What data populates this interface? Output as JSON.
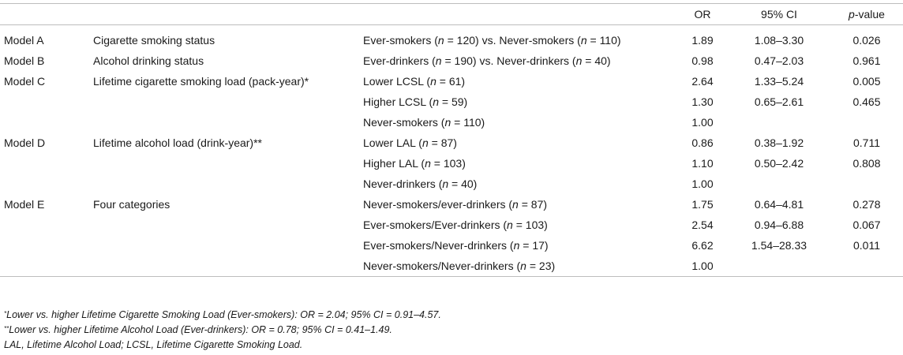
{
  "header": {
    "col_or": "OR",
    "col_ci": "95% CI",
    "col_p_italic": "p",
    "col_p_rest": "-value"
  },
  "rows": [
    {
      "model": "Model A",
      "variable": "Cigarette smoking status",
      "comparison": "Ever-smokers (n = 120) vs. Never-smokers (n = 110)",
      "or": "1.89",
      "ci": "1.08–3.30",
      "p": "0.026"
    },
    {
      "model": "Model B",
      "variable": "Alcohol drinking status",
      "comparison": "Ever-drinkers (n = 190) vs. Never-drinkers (n = 40)",
      "or": "0.98",
      "ci": "0.47–2.03",
      "p": "0.961"
    },
    {
      "model": "Model C",
      "variable": "Lifetime cigarette smoking load (pack-year)*",
      "comparison": "Lower LCSL (n = 61)",
      "or": "2.64",
      "ci": "1.33–5.24",
      "p": "0.005"
    },
    {
      "model": "",
      "variable": "",
      "comparison": "Higher LCSL (n = 59)",
      "or": "1.30",
      "ci": "0.65–2.61",
      "p": "0.465"
    },
    {
      "model": "",
      "variable": "",
      "comparison": "Never-smokers (n = 110)",
      "or": "1.00",
      "ci": "",
      "p": ""
    },
    {
      "model": "Model D",
      "variable": "Lifetime alcohol load (drink-year)**",
      "comparison": "Lower LAL (n = 87)",
      "or": "0.86",
      "ci": "0.38–1.92",
      "p": "0.711"
    },
    {
      "model": "",
      "variable": "",
      "comparison": "Higher LAL (n = 103)",
      "or": "1.10",
      "ci": "0.50–2.42",
      "p": "0.808"
    },
    {
      "model": "",
      "variable": "",
      "comparison": "Never-drinkers (n = 40)",
      "or": "1.00",
      "ci": "",
      "p": ""
    },
    {
      "model": "Model E",
      "variable": "Four categories",
      "comparison": "Never-smokers/ever-drinkers (n = 87)",
      "or": "1.75",
      "ci": "0.64–4.81",
      "p": "0.278"
    },
    {
      "model": "",
      "variable": "",
      "comparison": "Ever-smokers/Ever-drinkers (n = 103)",
      "or": "2.54",
      "ci": "0.94–6.88",
      "p": "0.067"
    },
    {
      "model": "",
      "variable": "",
      "comparison": "Ever-smokers/Never-drinkers (n = 17)",
      "or": "6.62",
      "ci": "1.54–28.33",
      "p": "0.011"
    },
    {
      "model": "",
      "variable": "",
      "comparison": "Never-smokers/Never-drinkers (n = 23)",
      "or": "1.00",
      "ci": "",
      "p": ""
    }
  ],
  "footnotes": {
    "note1_mark": "*",
    "note1_text": "Lower vs. higher Lifetime Cigarette Smoking Load (Ever-smokers): OR = 2.04; 95% CI = 0.91–4.57.",
    "note2_mark": "**",
    "note2_text": "Lower vs. higher Lifetime Alcohol Load (Ever-drinkers): OR = 0.78; 95% CI = 0.41–1.49.",
    "note3_text": "LAL, Lifetime Alcohol Load; LCSL, Lifetime Cigarette Smoking Load."
  }
}
